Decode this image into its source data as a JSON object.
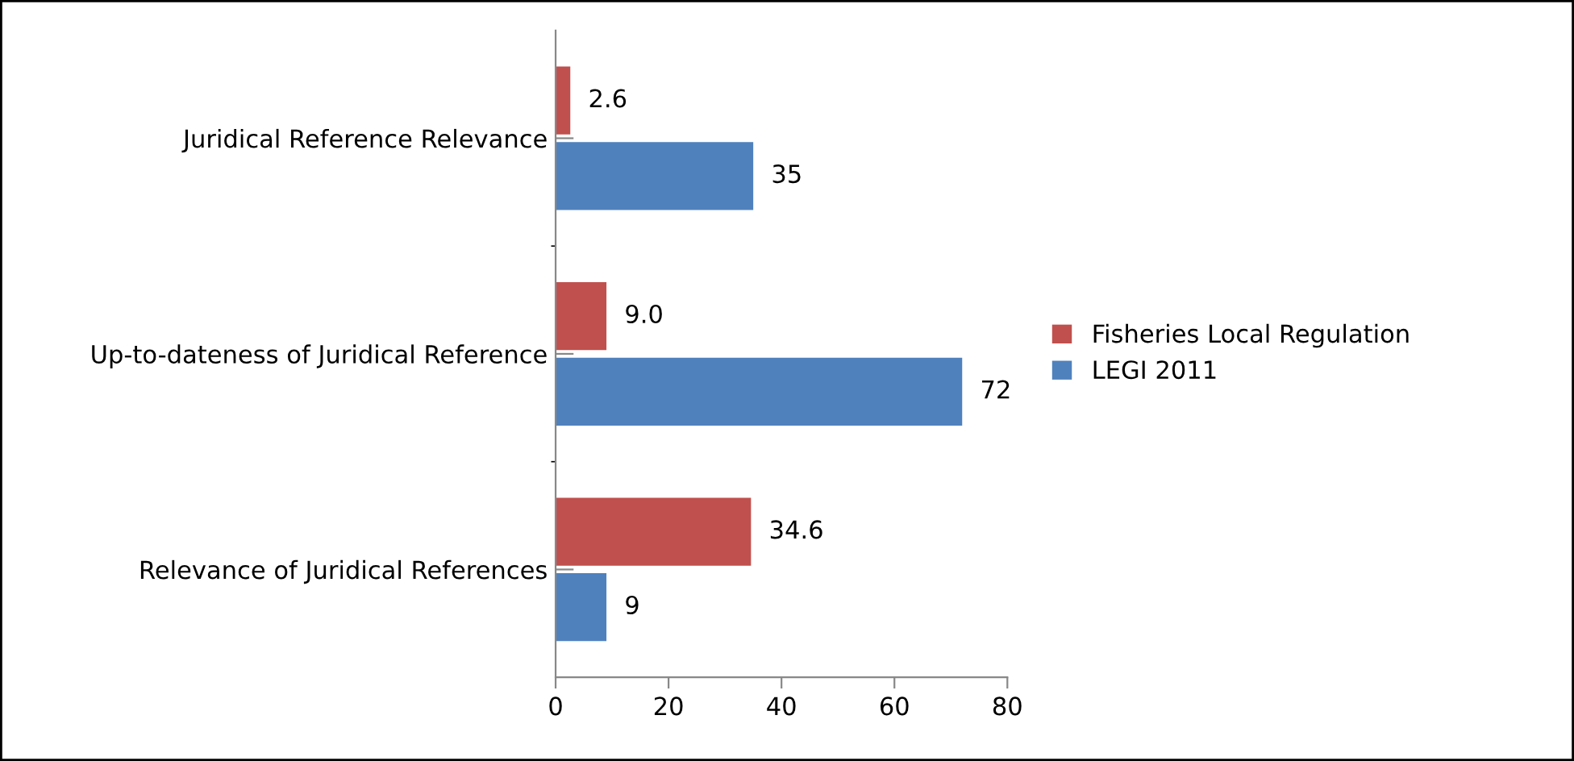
{
  "chart_data": {
    "type": "bar",
    "orientation": "horizontal",
    "categories": [
      "Juridical Reference Relevance",
      "Up-to-dateness of Juridical Reference",
      "Relevance of Juridical References"
    ],
    "series": [
      {
        "name": "Fisheries Local Regulation",
        "color": "#c0504d",
        "values": [
          2.6,
          9.0,
          34.6
        ],
        "value_labels": [
          "2.6",
          "9.0",
          "34.6"
        ]
      },
      {
        "name": "LEGI 2011",
        "color": "#4f81bd",
        "values": [
          35,
          72,
          9
        ],
        "value_labels": [
          "35",
          "72",
          "9"
        ]
      }
    ],
    "xlim": [
      0,
      80
    ],
    "xticks": [
      0,
      20,
      40,
      60,
      80
    ],
    "grid": false,
    "legend": "right"
  }
}
